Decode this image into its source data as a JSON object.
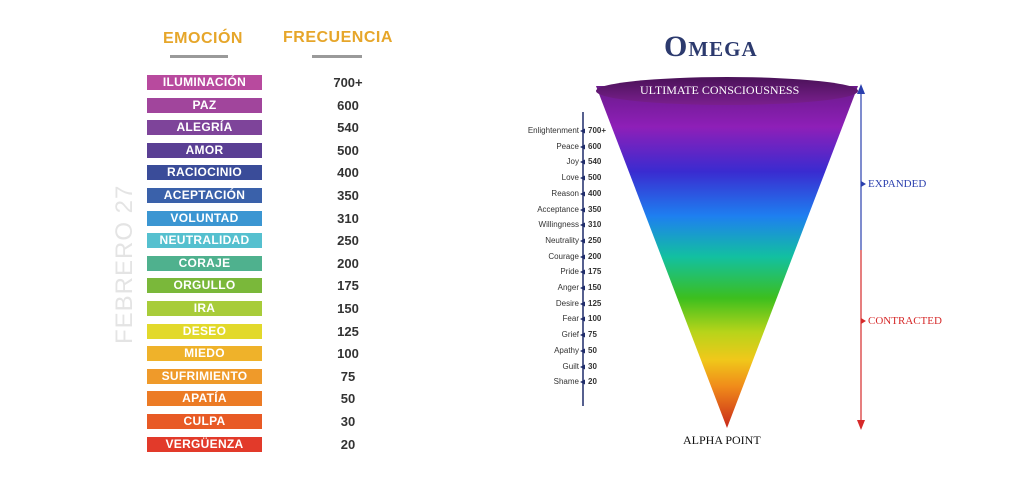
{
  "left_table": {
    "headers": {
      "emotion": "EMOCIÓN",
      "frequency": "FRECUENCIA"
    },
    "watermark": "FEBRERO 27",
    "rows": [
      {
        "emotion": "ILUMINACIÓN",
        "frequency": "700+",
        "color": "#b84a9e"
      },
      {
        "emotion": "PAZ",
        "frequency": "600",
        "color": "#a1459c"
      },
      {
        "emotion": "ALEGRÍA",
        "frequency": "540",
        "color": "#7e449a"
      },
      {
        "emotion": "AMOR",
        "frequency": "500",
        "color": "#5a3f94"
      },
      {
        "emotion": "RACIOCINIO",
        "frequency": "400",
        "color": "#3a4c99"
      },
      {
        "emotion": "ACEPTACIÓN",
        "frequency": "350",
        "color": "#3a61aa"
      },
      {
        "emotion": "VOLUNTAD",
        "frequency": "310",
        "color": "#3b96d2"
      },
      {
        "emotion": "NEUTRALIDAD",
        "frequency": "250",
        "color": "#55c0cf"
      },
      {
        "emotion": "CORAJE",
        "frequency": "200",
        "color": "#4fb18e"
      },
      {
        "emotion": "ORGULLO",
        "frequency": "175",
        "color": "#7ab83a"
      },
      {
        "emotion": "IRA",
        "frequency": "150",
        "color": "#a8cc3a"
      },
      {
        "emotion": "DESEO",
        "frequency": "125",
        "color": "#e2d92b"
      },
      {
        "emotion": "MIEDO",
        "frequency": "100",
        "color": "#efb22a"
      },
      {
        "emotion": "SUFRIMIENTO",
        "frequency": "75",
        "color": "#ef9a2a"
      },
      {
        "emotion": "APATÍA",
        "frequency": "50",
        "color": "#ec7b25"
      },
      {
        "emotion": "CULPA",
        "frequency": "30",
        "color": "#e85a25"
      },
      {
        "emotion": "VERGÜENZA",
        "frequency": "20",
        "color": "#e23a2a"
      }
    ]
  },
  "cone": {
    "title": "Omega",
    "top_label": "ULTIMATE CONSCIOUSNESS",
    "bottom_label": "ALPHA POINT",
    "expanded_label": "EXPANDED",
    "contracted_label": "CONTRACTED",
    "colors": {
      "expanded": "#2a3fae",
      "contracted": "#d62a2a",
      "title": "#2c3a6e"
    },
    "scale": [
      {
        "name": "Enlightenment",
        "value": "700+"
      },
      {
        "name": "Peace",
        "value": "600"
      },
      {
        "name": "Joy",
        "value": "540"
      },
      {
        "name": "Love",
        "value": "500"
      },
      {
        "name": "Reason",
        "value": "400"
      },
      {
        "name": "Acceptance",
        "value": "350"
      },
      {
        "name": "Willingness",
        "value": "310"
      },
      {
        "name": "Neutrality",
        "value": "250"
      },
      {
        "name": "Courage",
        "value": "200"
      },
      {
        "name": "Pride",
        "value": "175"
      },
      {
        "name": "Anger",
        "value": "150"
      },
      {
        "name": "Desire",
        "value": "125"
      },
      {
        "name": "Fear",
        "value": "100"
      },
      {
        "name": "Grief",
        "value": "75"
      },
      {
        "name": "Apathy",
        "value": "50"
      },
      {
        "name": "Guilt",
        "value": "30"
      },
      {
        "name": "Shame",
        "value": "20"
      }
    ]
  }
}
